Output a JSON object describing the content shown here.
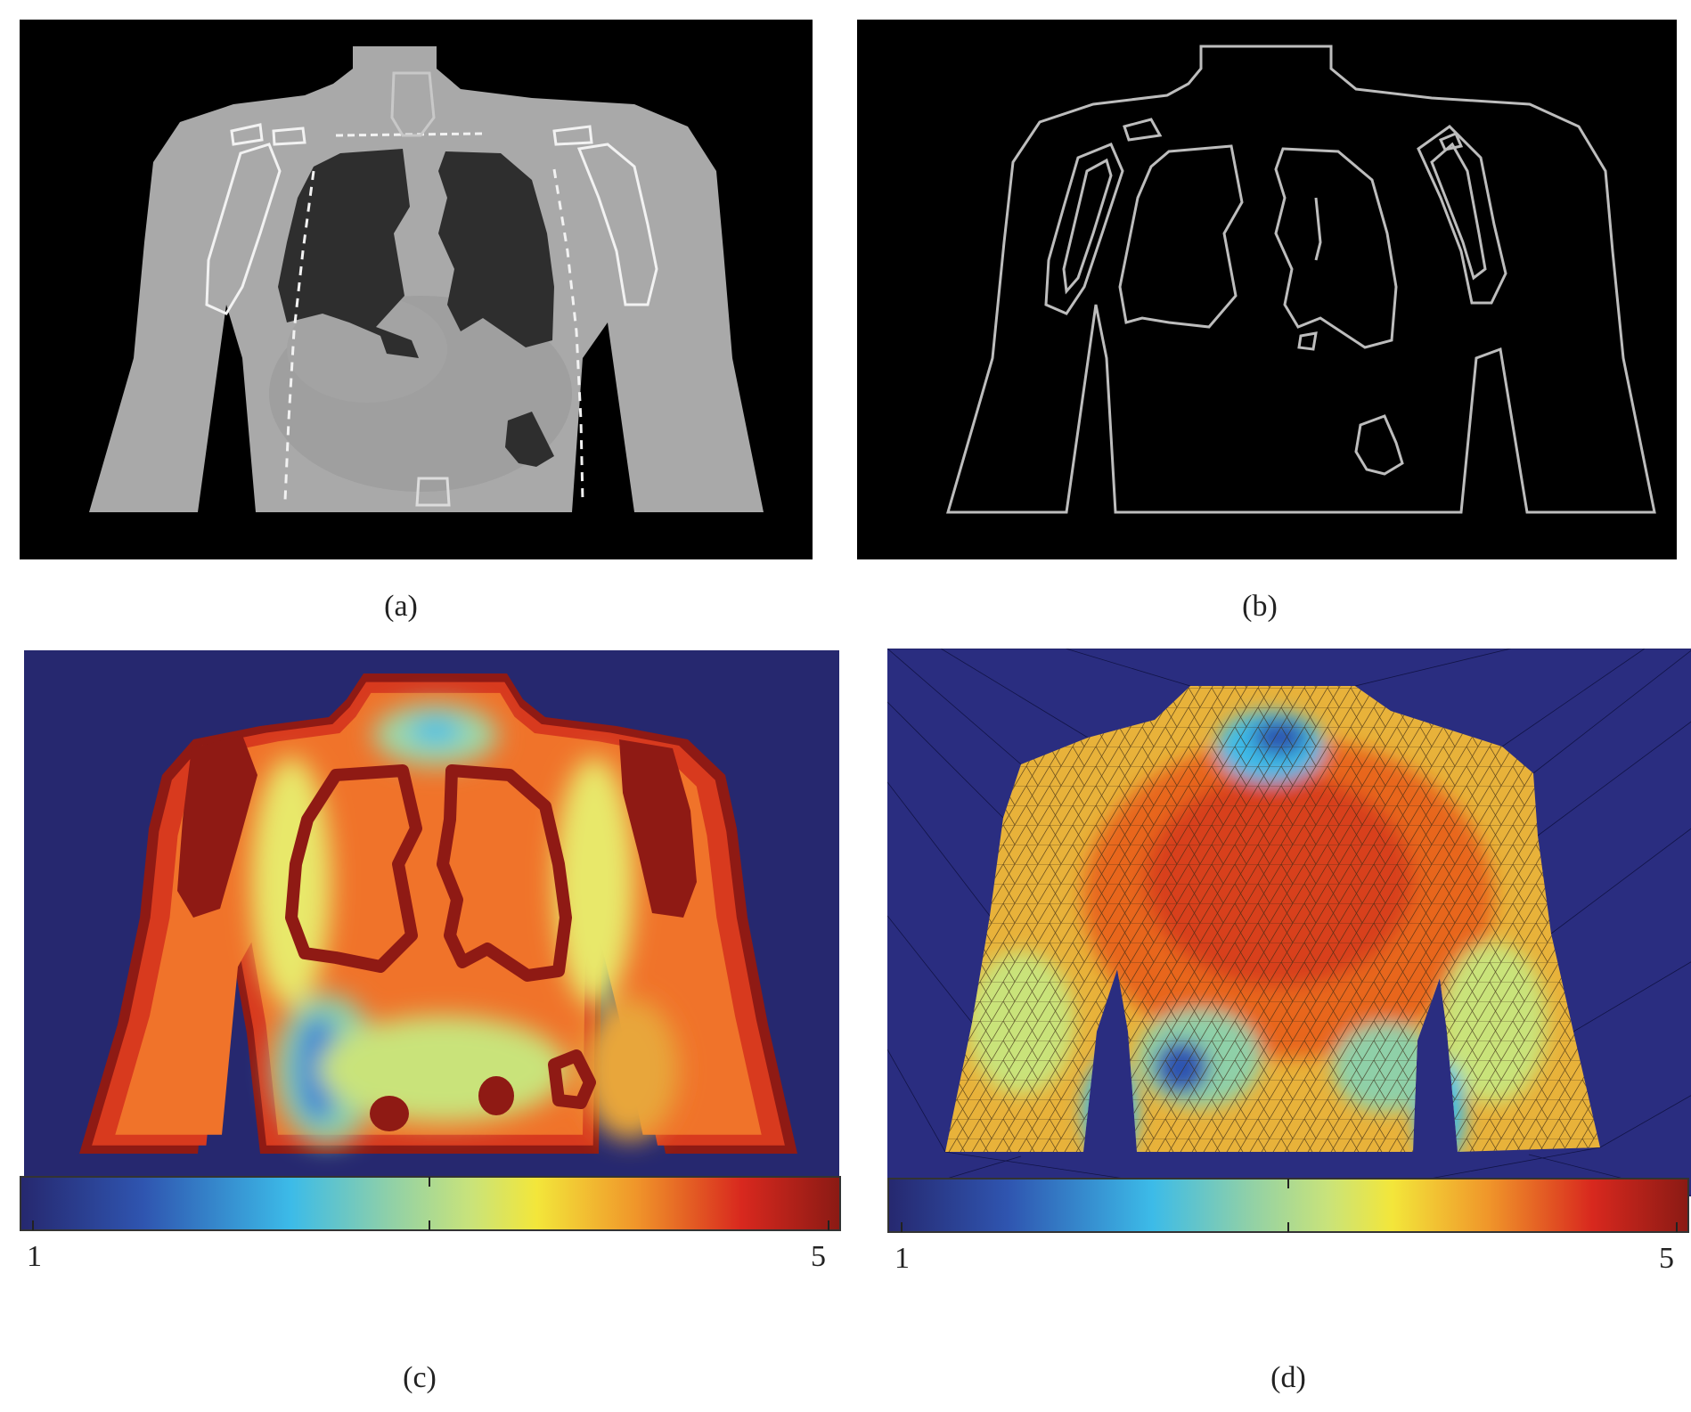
{
  "figure": {
    "panels": [
      {
        "id": "a",
        "caption": "(a)"
      },
      {
        "id": "b",
        "caption": "(b)"
      },
      {
        "id": "c",
        "caption": "(c)"
      },
      {
        "id": "d",
        "caption": "(d)"
      }
    ],
    "colorbars": [
      {
        "panel": "c",
        "min_label": "1",
        "max_label": "5",
        "min": 1,
        "max": 5,
        "colormap": "jet"
      },
      {
        "panel": "d",
        "min_label": "1",
        "max_label": "5",
        "min": 1,
        "max": 5,
        "colormap": "jet"
      }
    ],
    "colors": {
      "background": "#000000",
      "tissue": "#a9a9a9",
      "lung": "#2e2e2e",
      "bone_outline": "#f2f2f2",
      "edge_line": "#bdbdbd",
      "colormap_low": "#26286f",
      "colormap_high": "#8a1a14"
    }
  }
}
